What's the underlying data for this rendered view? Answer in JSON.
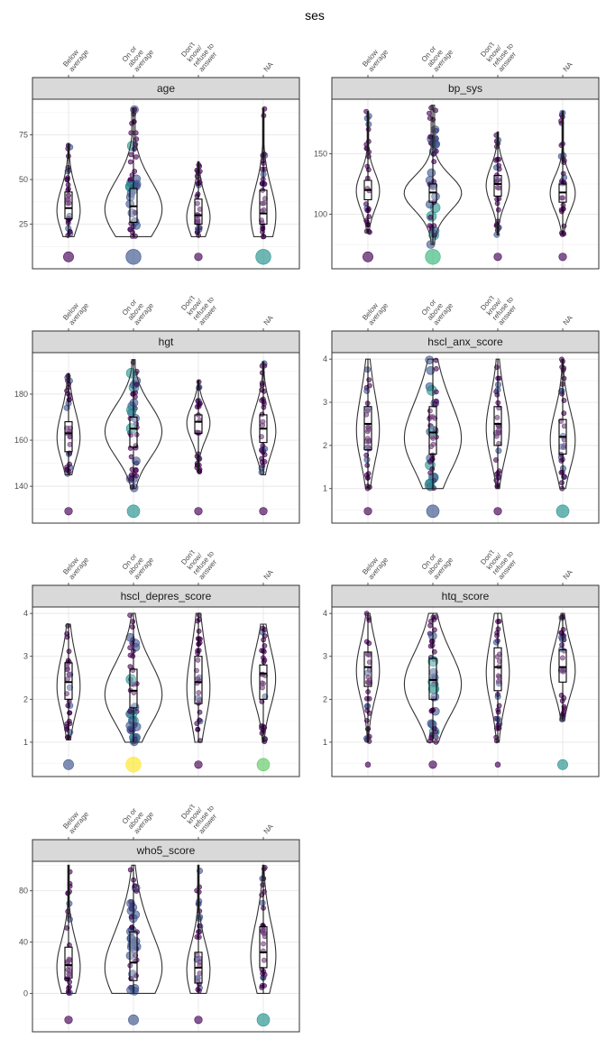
{
  "chart_data": {
    "type": "violin",
    "title": "ses",
    "categories": [
      "Below average",
      "On or above average",
      "Don't know/ refuse to answer",
      "NA"
    ],
    "category_label_lines": [
      [
        "Below",
        "average"
      ],
      [
        "On or",
        "above",
        "average"
      ],
      [
        "Don't",
        "know/",
        "refuse to",
        "answer"
      ],
      [
        "NA"
      ]
    ],
    "facets": [
      {
        "name": "age",
        "ylim": [
          0,
          95
        ],
        "yticks": [
          25,
          50,
          75
        ],
        "groups": [
          {
            "min": 18,
            "q1": 28,
            "median": 34,
            "q3": 43,
            "max": 70,
            "na_count_size": 3
          },
          {
            "min": 18,
            "q1": 26,
            "median": 35,
            "q3": 45,
            "max": 90,
            "na_count_size": 5
          },
          {
            "min": 18,
            "q1": 25,
            "median": 30,
            "q3": 39,
            "max": 60,
            "na_count_size": 2
          },
          {
            "min": 18,
            "q1": 25,
            "median": 31,
            "q3": 44,
            "max": 90,
            "na_count_size": 5
          }
        ]
      },
      {
        "name": "bp_sys",
        "ylim": [
          55,
          195
        ],
        "yticks": [
          100,
          150
        ],
        "groups": [
          {
            "min": 85,
            "q1": 112,
            "median": 120,
            "q3": 128,
            "max": 185,
            "na_count_size": 3
          },
          {
            "min": 75,
            "q1": 110,
            "median": 118,
            "q3": 125,
            "max": 190,
            "na_count_size": 5
          },
          {
            "min": 83,
            "q1": 115,
            "median": 125,
            "q3": 132,
            "max": 168,
            "na_count_size": 2
          },
          {
            "min": 83,
            "q1": 110,
            "median": 118,
            "q3": 125,
            "max": 185,
            "na_count_size": 2
          }
        ]
      },
      {
        "name": "hgt",
        "ylim": [
          124,
          198
        ],
        "yticks": [
          140,
          160,
          180
        ],
        "groups": [
          {
            "min": 145,
            "q1": 155,
            "median": 163,
            "q3": 168,
            "max": 189,
            "na_count_size": 2
          },
          {
            "min": 139,
            "q1": 157,
            "median": 165,
            "q3": 170,
            "max": 195,
            "na_count_size": 4
          },
          {
            "min": 146,
            "q1": 163,
            "median": 168,
            "q3": 171,
            "max": 186,
            "na_count_size": 2
          },
          {
            "min": 145,
            "q1": 159,
            "median": 165,
            "q3": 171,
            "max": 194,
            "na_count_size": 2
          }
        ]
      },
      {
        "name": "hscl_anx_score",
        "ylim": [
          0.2,
          4.15
        ],
        "yticks": [
          1,
          2,
          3,
          4
        ],
        "groups": [
          {
            "min": 1,
            "q1": 1.9,
            "median": 2.5,
            "q3": 2.9,
            "max": 4,
            "na_count_size": 2
          },
          {
            "min": 1,
            "q1": 1.8,
            "median": 2.3,
            "q3": 2.9,
            "max": 4,
            "na_count_size": 4
          },
          {
            "min": 1,
            "q1": 2.0,
            "median": 2.5,
            "q3": 2.9,
            "max": 4,
            "na_count_size": 2
          },
          {
            "min": 1,
            "q1": 1.8,
            "median": 2.2,
            "q3": 2.6,
            "max": 4,
            "na_count_size": 4
          }
        ]
      },
      {
        "name": "hscl_depres_score",
        "ylim": [
          0.2,
          4.15
        ],
        "yticks": [
          1,
          2,
          3,
          4
        ],
        "groups": [
          {
            "min": 1.05,
            "q1": 2.0,
            "median": 2.4,
            "q3": 2.85,
            "max": 3.75,
            "na_count_size": 3
          },
          {
            "min": 1.0,
            "q1": 1.8,
            "median": 2.2,
            "q3": 2.7,
            "max": 4.0,
            "na_count_size": 5
          },
          {
            "min": 1.0,
            "q1": 1.9,
            "median": 2.4,
            "q3": 3.0,
            "max": 4.0,
            "na_count_size": 2
          },
          {
            "min": 1.0,
            "q1": 2.0,
            "median": 2.6,
            "q3": 2.8,
            "max": 3.75,
            "na_count_size": 4
          }
        ]
      },
      {
        "name": "htq_score",
        "ylim": [
          0.2,
          4.15
        ],
        "yticks": [
          1,
          2,
          3,
          4
        ],
        "groups": [
          {
            "min": 1.0,
            "q1": 2.3,
            "median": 2.75,
            "q3": 3.1,
            "max": 4.0,
            "na_count_size": 1
          },
          {
            "min": 1.0,
            "q1": 2.0,
            "median": 2.45,
            "q3": 2.95,
            "max": 4.0,
            "na_count_size": 2
          },
          {
            "min": 1.0,
            "q1": 2.2,
            "median": 2.75,
            "q3": 3.2,
            "max": 4.0,
            "na_count_size": 1
          },
          {
            "min": 1.5,
            "q1": 2.4,
            "median": 2.75,
            "q3": 3.15,
            "max": 4.0,
            "na_count_size": 3
          }
        ]
      },
      {
        "name": "who5_score",
        "ylim": [
          -30,
          103
        ],
        "yticks": [
          0,
          40,
          80
        ],
        "groups": [
          {
            "min": 0,
            "q1": 12,
            "median": 22,
            "q3": 36,
            "max": 100,
            "na_count_size": 2
          },
          {
            "min": 0,
            "q1": 10,
            "median": 24,
            "q3": 48,
            "max": 100,
            "na_count_size": 3
          },
          {
            "min": 0,
            "q1": 8,
            "median": 20,
            "q3": 32,
            "max": 100,
            "na_count_size": 2
          },
          {
            "min": 0,
            "q1": 20,
            "median": 32,
            "q3": 52,
            "max": 100,
            "na_count_size": 4
          }
        ]
      }
    ],
    "colors": {
      "violin_stroke": "#333333",
      "strip_fill": "#d9d9d9",
      "viridis_dark": "#440154",
      "viridis_blue": "#3b528b",
      "viridis_teal": "#21908c",
      "viridis_green": "#5dc863",
      "viridis_yellow": "#fde725"
    },
    "na_point_colors": [
      [
        "#440154",
        "#3b528b",
        "#440154",
        "#21908c"
      ],
      [
        "#440154",
        "#35b779",
        "#440154",
        "#440154"
      ],
      [
        "#440154",
        "#21908c",
        "#440154",
        "#440154"
      ],
      [
        "#440154",
        "#3b528b",
        "#440154",
        "#21908c"
      ],
      [
        "#3b528b",
        "#fde725",
        "#440154",
        "#5dc863"
      ],
      [
        "#440154",
        "#440154",
        "#440154",
        "#21908c"
      ],
      [
        "#440154",
        "#3b528b",
        "#440154",
        "#21908c"
      ]
    ]
  }
}
